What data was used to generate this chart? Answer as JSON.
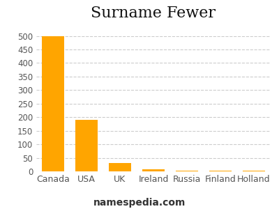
{
  "title": "Surname Fewer",
  "categories": [
    "Canada",
    "USA",
    "UK",
    "Ireland",
    "Russia",
    "Finland",
    "Holland"
  ],
  "values": [
    498,
    190,
    30,
    8,
    3,
    2,
    2
  ],
  "bar_color": "#FFA500",
  "background_color": "#ffffff",
  "ylim": [
    0,
    540
  ],
  "yticks": [
    0,
    50,
    100,
    150,
    200,
    250,
    300,
    350,
    400,
    450,
    500
  ],
  "grid_color": "#cccccc",
  "title_fontsize": 16,
  "tick_fontsize": 8.5,
  "xtick_fontsize": 9,
  "footer_text": "namespedia.com",
  "footer_fontsize": 10
}
